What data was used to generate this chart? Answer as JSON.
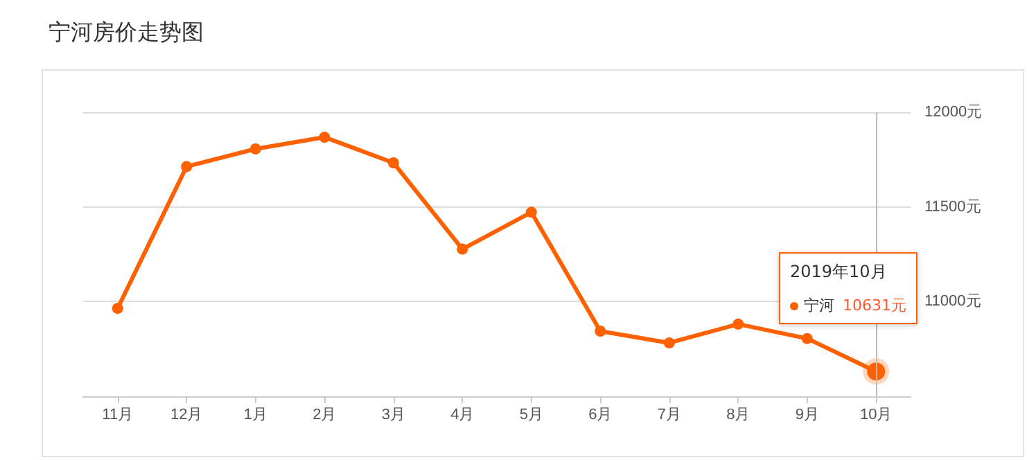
{
  "chart_data": {
    "type": "line",
    "title": "宁河房价走势图",
    "categories": [
      "11月",
      "12月",
      "1月",
      "2月",
      "3月",
      "4月",
      "5月",
      "6月",
      "7月",
      "8月",
      "9月",
      "10月"
    ],
    "series": [
      {
        "name": "宁河",
        "color": "#ff6000",
        "values": [
          10964,
          11713,
          11806,
          11868,
          11733,
          11277,
          11472,
          10844,
          10782,
          10881,
          10805,
          10631
        ],
        "value_labels": [
          null,
          null,
          null,
          null,
          null,
          null,
          null,
          null,
          null,
          null,
          null,
          "10631元"
        ]
      }
    ],
    "ylim": [
      10500,
      12000
    ],
    "yticks": [
      {
        "value": 10500,
        "label": null
      },
      {
        "value": 11000,
        "label": "11000元"
      },
      {
        "value": 11500,
        "label": "11500元"
      },
      {
        "value": 12000,
        "label": "12000元"
      }
    ],
    "annotations": [
      "2019年10月"
    ],
    "ref_lines": [
      {
        "axis": "x",
        "value": "10月"
      }
    ],
    "grid": "y",
    "legend": "right",
    "marker": "circle",
    "line_style": "solid"
  }
}
